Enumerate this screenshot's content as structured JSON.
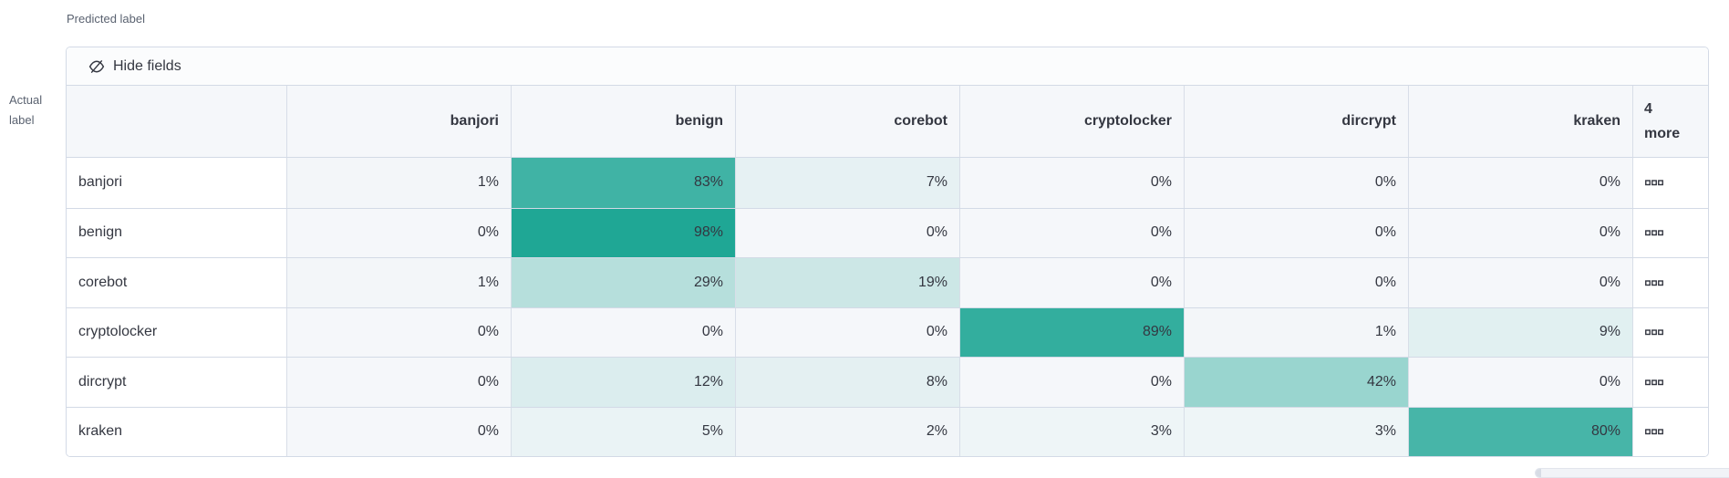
{
  "labels": {
    "predicted": "Predicted label",
    "actual_line1": "Actual",
    "actual_line2": "label"
  },
  "toolbar": {
    "hide_fields": "Hide fields",
    "icon": "eye-closed-icon"
  },
  "grid": {
    "columns": [
      "banjori",
      "benign",
      "corebot",
      "cryptolocker",
      "dircrypt",
      "kraken"
    ],
    "more_column": {
      "count": "4",
      "label": "more"
    },
    "value_suffix": "%",
    "more_cell_icon": "boxes-horizontal-icon",
    "rows": [
      {
        "label": "banjori",
        "values": [
          1,
          83,
          7,
          0,
          0,
          0
        ]
      },
      {
        "label": "benign",
        "values": [
          0,
          98,
          0,
          0,
          0,
          0
        ]
      },
      {
        "label": "corebot",
        "values": [
          1,
          29,
          19,
          0,
          0,
          0
        ]
      },
      {
        "label": "cryptolocker",
        "values": [
          0,
          0,
          0,
          89,
          1,
          9
        ]
      },
      {
        "label": "dircrypt",
        "values": [
          0,
          12,
          8,
          0,
          42,
          0
        ]
      },
      {
        "label": "kraken",
        "values": [
          0,
          5,
          2,
          3,
          3,
          80
        ]
      }
    ]
  },
  "colors": {
    "heat_base": "#1BA593",
    "cell_zero_bg": "#F5F7FA",
    "border": "#D3DAE6",
    "text": "#343741"
  },
  "chart_data": {
    "type": "heatmap",
    "xlabel": "Predicted label",
    "ylabel": "Actual label",
    "x": [
      "banjori",
      "benign",
      "corebot",
      "cryptolocker",
      "dircrypt",
      "kraken"
    ],
    "y": [
      "banjori",
      "benign",
      "corebot",
      "cryptolocker",
      "dircrypt",
      "kraken"
    ],
    "values_percent": [
      [
        1,
        83,
        7,
        0,
        0,
        0
      ],
      [
        0,
        98,
        0,
        0,
        0,
        0
      ],
      [
        1,
        29,
        19,
        0,
        0,
        0
      ],
      [
        0,
        0,
        0,
        89,
        1,
        9
      ],
      [
        0,
        12,
        8,
        0,
        42,
        0
      ],
      [
        0,
        5,
        2,
        3,
        3,
        80
      ]
    ],
    "hidden_columns_count": 4,
    "legend_position": "none",
    "value_range": [
      0,
      100
    ]
  }
}
